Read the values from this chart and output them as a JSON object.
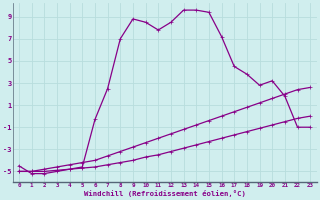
{
  "xlabel": "Windchill (Refroidissement éolien,°C)",
  "bg_color": "#d0eeee",
  "line_color": "#880088",
  "grid_color": "#aadddd",
  "xlim": [
    -0.5,
    23.5
  ],
  "ylim": [
    -6.0,
    10.2
  ],
  "yticks": [
    -5,
    -3,
    -1,
    1,
    3,
    5,
    7,
    9
  ],
  "xticks": [
    0,
    1,
    2,
    3,
    4,
    5,
    6,
    7,
    8,
    9,
    10,
    11,
    12,
    13,
    14,
    15,
    16,
    17,
    18,
    19,
    20,
    21,
    22,
    23
  ],
  "hours": [
    0,
    1,
    2,
    3,
    4,
    5,
    6,
    7,
    8,
    9,
    10,
    11,
    12,
    13,
    14,
    15,
    16,
    17,
    18,
    19,
    20,
    21,
    22,
    23
  ],
  "line1": [
    -4.5,
    -5.2,
    -5.2,
    -5.0,
    -4.8,
    -4.6,
    -0.3,
    2.5,
    7.0,
    8.8,
    8.5,
    7.8,
    8.5,
    9.6,
    9.6,
    9.4,
    7.2,
    4.5,
    3.8,
    2.8,
    3.2,
    1.8,
    -1.0,
    -1.0
  ],
  "line2": [
    -5.0,
    -5.0,
    -4.8,
    -4.6,
    -4.4,
    -4.2,
    -4.0,
    -3.6,
    -3.2,
    -2.8,
    -2.4,
    -2.0,
    -1.6,
    -1.2,
    -0.8,
    -0.4,
    0.0,
    0.4,
    0.8,
    1.2,
    1.6,
    2.0,
    2.4,
    2.6
  ],
  "line3": [
    -5.0,
    -5.0,
    -5.0,
    -4.9,
    -4.8,
    -4.7,
    -4.6,
    -4.4,
    -4.2,
    -4.0,
    -3.7,
    -3.5,
    -3.2,
    -2.9,
    -2.6,
    -2.3,
    -2.0,
    -1.7,
    -1.4,
    -1.1,
    -0.8,
    -0.5,
    -0.2,
    0.0
  ]
}
